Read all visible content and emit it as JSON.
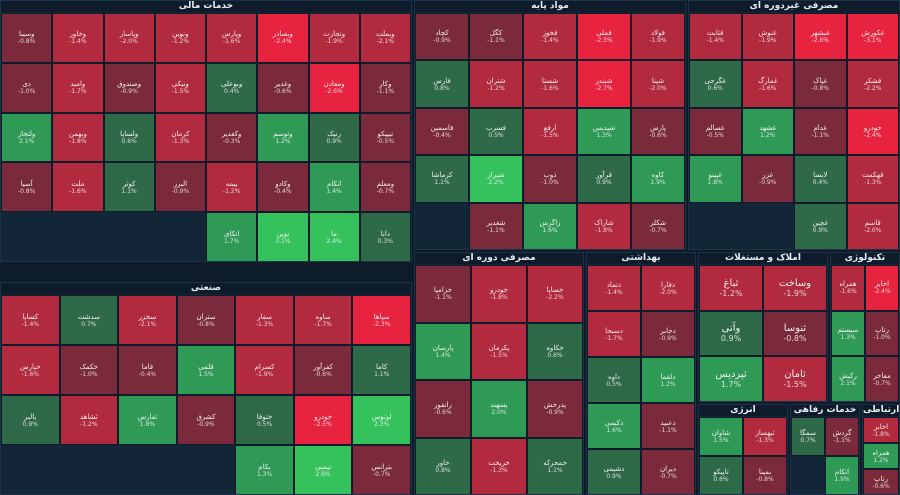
{
  "colors": {
    "strong_neg": "#e8233f",
    "neg": "#b22a3e",
    "mild_neg": "#7a2a3a",
    "flat": "#3c4a5c",
    "mild_pos": "#2f6a48",
    "pos": "#2f9a55",
    "strong_pos": "#35c25c"
  },
  "chart_data": {
    "type": "treemap",
    "title": "",
    "sectors": [
      {
        "name": "خدمات مالی",
        "stocks": [
          {
            "symbol": "وبملت",
            "change": -2.1
          },
          {
            "symbol": "وتجارت",
            "change": -1.9
          },
          {
            "symbol": "وبصادر",
            "change": -2.4
          },
          {
            "symbol": "وپارس",
            "change": -1.6
          },
          {
            "symbol": "ونوین",
            "change": -1.2
          },
          {
            "symbol": "وپاسار",
            "change": -2.0
          },
          {
            "symbol": "وخاور",
            "change": -1.4
          },
          {
            "symbol": "وسینا",
            "change": -0.8
          },
          {
            "symbol": "وکار",
            "change": -1.1
          },
          {
            "symbol": "ومعادن",
            "change": -2.6
          },
          {
            "symbol": "وغدیر",
            "change": -0.6
          },
          {
            "symbol": "وبوعلی",
            "change": 0.4
          },
          {
            "symbol": "ونیکی",
            "change": -1.5
          },
          {
            "symbol": "وصندوق",
            "change": -0.9
          },
          {
            "symbol": "وامید",
            "change": -1.7
          },
          {
            "symbol": "دی",
            "change": -1.0
          },
          {
            "symbol": "تیپیکو",
            "change": -0.5
          },
          {
            "symbol": "رنیک",
            "change": 0.9
          },
          {
            "symbol": "وتوسم",
            "change": 1.2
          },
          {
            "symbol": "وکغدیر",
            "change": -0.3
          },
          {
            "symbol": "کرمان",
            "change": -1.3
          },
          {
            "symbol": "ولساپا",
            "change": 0.6
          },
          {
            "symbol": "وبهمن",
            "change": -1.8
          },
          {
            "symbol": "ولتجار",
            "change": 2.1
          },
          {
            "symbol": "ومعلم",
            "change": -0.7
          },
          {
            "symbol": "اتکام",
            "change": 1.4
          },
          {
            "symbol": "وکادو",
            "change": -0.4
          },
          {
            "symbol": "بیمه",
            "change": -1.2
          },
          {
            "symbol": "البرز",
            "change": -0.9
          },
          {
            "symbol": "کوثر",
            "change": 1.1
          },
          {
            "symbol": "ملت",
            "change": -1.6
          },
          {
            "symbol": "آسیا",
            "change": -0.8
          },
          {
            "symbol": "دانا",
            "change": 0.3
          },
          {
            "symbol": "ما",
            "change": 2.4
          },
          {
            "symbol": "نوین",
            "change": 3.1
          },
          {
            "symbol": "اتکای",
            "change": 1.7
          }
        ]
      },
      {
        "name": "مواد پایه",
        "stocks": [
          {
            "symbol": "فولاد",
            "change": -1.9
          },
          {
            "symbol": "فملی",
            "change": -2.3
          },
          {
            "symbol": "فخوز",
            "change": -1.4
          },
          {
            "symbol": "کگل",
            "change": -1.1
          },
          {
            "symbol": "کچاد",
            "change": -0.9
          },
          {
            "symbol": "شپنا",
            "change": -2.0
          },
          {
            "symbol": "شبندر",
            "change": -2.7
          },
          {
            "symbol": "شستا",
            "change": -1.6
          },
          {
            "symbol": "شتران",
            "change": -1.2
          },
          {
            "symbol": "فارس",
            "change": 0.8
          },
          {
            "symbol": "پارس",
            "change": -0.6
          },
          {
            "symbol": "شپدیس",
            "change": 1.3
          },
          {
            "symbol": "ارفع",
            "change": -1.5
          },
          {
            "symbol": "فسرب",
            "change": 0.5
          },
          {
            "symbol": "فاسمین",
            "change": -0.4
          },
          {
            "symbol": "کاوه",
            "change": 1.9
          },
          {
            "symbol": "فرآور",
            "change": 0.9
          },
          {
            "symbol": "ذوب",
            "change": -1.0
          },
          {
            "symbol": "شیراز",
            "change": 2.2
          },
          {
            "symbol": "کرماشا",
            "change": 1.1
          },
          {
            "symbol": "شکلر",
            "change": -0.7
          },
          {
            "symbol": "شاراک",
            "change": -1.8
          },
          {
            "symbol": "زاگرس",
            "change": 1.6
          },
          {
            "symbol": "شغدیر",
            "change": -1.1
          }
        ]
      },
      {
        "name": "مصرفی غیردوره ای",
        "stocks": [
          {
            "symbol": "غکورش",
            "change": -3.1
          },
          {
            "symbol": "غبشهر",
            "change": -2.6
          },
          {
            "symbol": "غنوش",
            "change": -1.9
          },
          {
            "symbol": "قثابت",
            "change": -1.4
          },
          {
            "symbol": "قشکر",
            "change": -2.2
          },
          {
            "symbol": "غپاک",
            "change": -0.8
          },
          {
            "symbol": "غمارگ",
            "change": -1.6
          },
          {
            "symbol": "غگرجی",
            "change": 0.6
          },
          {
            "symbol": "خودرو",
            "change": -2.4
          },
          {
            "symbol": "غدام",
            "change": -1.1
          },
          {
            "symbol": "غشهد",
            "change": 1.2
          },
          {
            "symbol": "غسالم",
            "change": -0.5
          },
          {
            "symbol": "قهکمت",
            "change": -1.3
          },
          {
            "symbol": "لابسا",
            "change": 0.4
          },
          {
            "symbol": "غزر",
            "change": -0.9
          },
          {
            "symbol": "غپینو",
            "change": 1.8
          },
          {
            "symbol": "قاسم",
            "change": -2.0
          },
          {
            "symbol": "غچین",
            "change": 0.9
          }
        ]
      },
      {
        "name": "صنعتی",
        "stocks": [
          {
            "symbol": "سپاها",
            "change": -2.3
          },
          {
            "symbol": "ساوه",
            "change": -1.7
          },
          {
            "symbol": "سفار",
            "change": -1.3
          },
          {
            "symbol": "ستران",
            "change": -0.8
          },
          {
            "symbol": "سخزر",
            "change": -2.1
          },
          {
            "symbol": "سدشت",
            "change": 0.7
          },
          {
            "symbol": "کساپا",
            "change": -1.4
          },
          {
            "symbol": "کاما",
            "change": 1.1
          },
          {
            "symbol": "کفرآور",
            "change": -0.6
          },
          {
            "symbol": "کسرام",
            "change": -1.9
          },
          {
            "symbol": "قلمی",
            "change": 1.5
          },
          {
            "symbol": "فاما",
            "change": -0.4
          },
          {
            "symbol": "خکمک",
            "change": -1.0
          },
          {
            "symbol": "خپارس",
            "change": -1.6
          },
          {
            "symbol": "لوتوس",
            "change": 2.3
          },
          {
            "symbol": "خودرو",
            "change": -2.5
          },
          {
            "symbol": "ختوقا",
            "change": 0.5
          },
          {
            "symbol": "کشرق",
            "change": -0.9
          },
          {
            "symbol": "ثفارس",
            "change": 1.8
          },
          {
            "symbol": "ثشاهد",
            "change": -1.2
          },
          {
            "symbol": "بالبر",
            "change": 0.9
          },
          {
            "symbol": "بترانس",
            "change": -0.7
          },
          {
            "symbol": "تپمپی",
            "change": 2.6
          },
          {
            "symbol": "بکام",
            "change": 1.3
          }
        ]
      },
      {
        "name": "مصرفی دوره ای",
        "stocks": [
          {
            "symbol": "خساپا",
            "change": -2.2
          },
          {
            "symbol": "خودرو",
            "change": -1.8
          },
          {
            "symbol": "خزامیا",
            "change": -1.1
          },
          {
            "symbol": "خکاوه",
            "change": 0.6
          },
          {
            "symbol": "پکرمان",
            "change": -1.5
          },
          {
            "symbol": "پارسان",
            "change": 1.4
          },
          {
            "symbol": "پدرخش",
            "change": -0.9
          },
          {
            "symbol": "پسهند",
            "change": 2.0
          },
          {
            "symbol": "رانفور",
            "change": -0.6
          },
          {
            "symbol": "خمحرکه",
            "change": 1.1
          },
          {
            "symbol": "خریخت",
            "change": -1.3
          },
          {
            "symbol": "خاور",
            "change": 0.8
          }
        ]
      },
      {
        "name": "بهداشتی",
        "stocks": [
          {
            "symbol": "دفارا",
            "change": -2.0
          },
          {
            "symbol": "دتماد",
            "change": -1.4
          },
          {
            "symbol": "دجابر",
            "change": -0.9
          },
          {
            "symbol": "دسبحا",
            "change": -1.7
          },
          {
            "symbol": "دلقما",
            "change": 1.2
          },
          {
            "symbol": "داوه",
            "change": 0.5
          },
          {
            "symbol": "دعبید",
            "change": -1.1
          },
          {
            "symbol": "دکیمی",
            "change": 1.6
          },
          {
            "symbol": "دیران",
            "change": -0.7
          },
          {
            "symbol": "دشیمی",
            "change": 0.9
          }
        ]
      },
      {
        "name": "املاک و مستغلات",
        "stocks": [
          {
            "symbol": "وساخت",
            "change": -1.9
          },
          {
            "symbol": "ثباغ",
            "change": -1.2
          },
          {
            "symbol": "ثنوسا",
            "change": -0.8
          },
          {
            "symbol": "وآتی",
            "change": 0.9
          },
          {
            "symbol": "ثامان",
            "change": -1.5
          },
          {
            "symbol": "ثپردیس",
            "change": 1.7
          }
        ]
      },
      {
        "name": "تکنولوژی",
        "stocks": [
          {
            "symbol": "اخابر",
            "change": -2.4
          },
          {
            "symbol": "همراه",
            "change": -1.6
          },
          {
            "symbol": "رتاپ",
            "change": -1.0
          },
          {
            "symbol": "سیستم",
            "change": 1.3
          },
          {
            "symbol": "مفاخر",
            "change": -0.7
          },
          {
            "symbol": "رکیش",
            "change": 2.1
          }
        ]
      },
      {
        "name": "انرژی",
        "stocks": [
          {
            "symbol": "ثبهساز",
            "change": -1.3
          },
          {
            "symbol": "شاوان",
            "change": 1.5
          },
          {
            "symbol": "بمپنا",
            "change": -0.8
          },
          {
            "symbol": "تاپیکو",
            "change": 0.6
          }
        ]
      },
      {
        "name": "خدمات رفاهی",
        "stocks": [
          {
            "symbol": "گردش",
            "change": -1.1
          },
          {
            "symbol": "سمگا",
            "change": 0.7
          },
          {
            "symbol": "اتکام",
            "change": 1.9
          }
        ]
      },
      {
        "name": "ارتباطی",
        "stocks": [
          {
            "symbol": "اخابر",
            "change": -1.8
          },
          {
            "symbol": "همراه",
            "change": 1.2
          },
          {
            "symbol": "رتاپ",
            "change": -0.6
          }
        ]
      }
    ]
  }
}
